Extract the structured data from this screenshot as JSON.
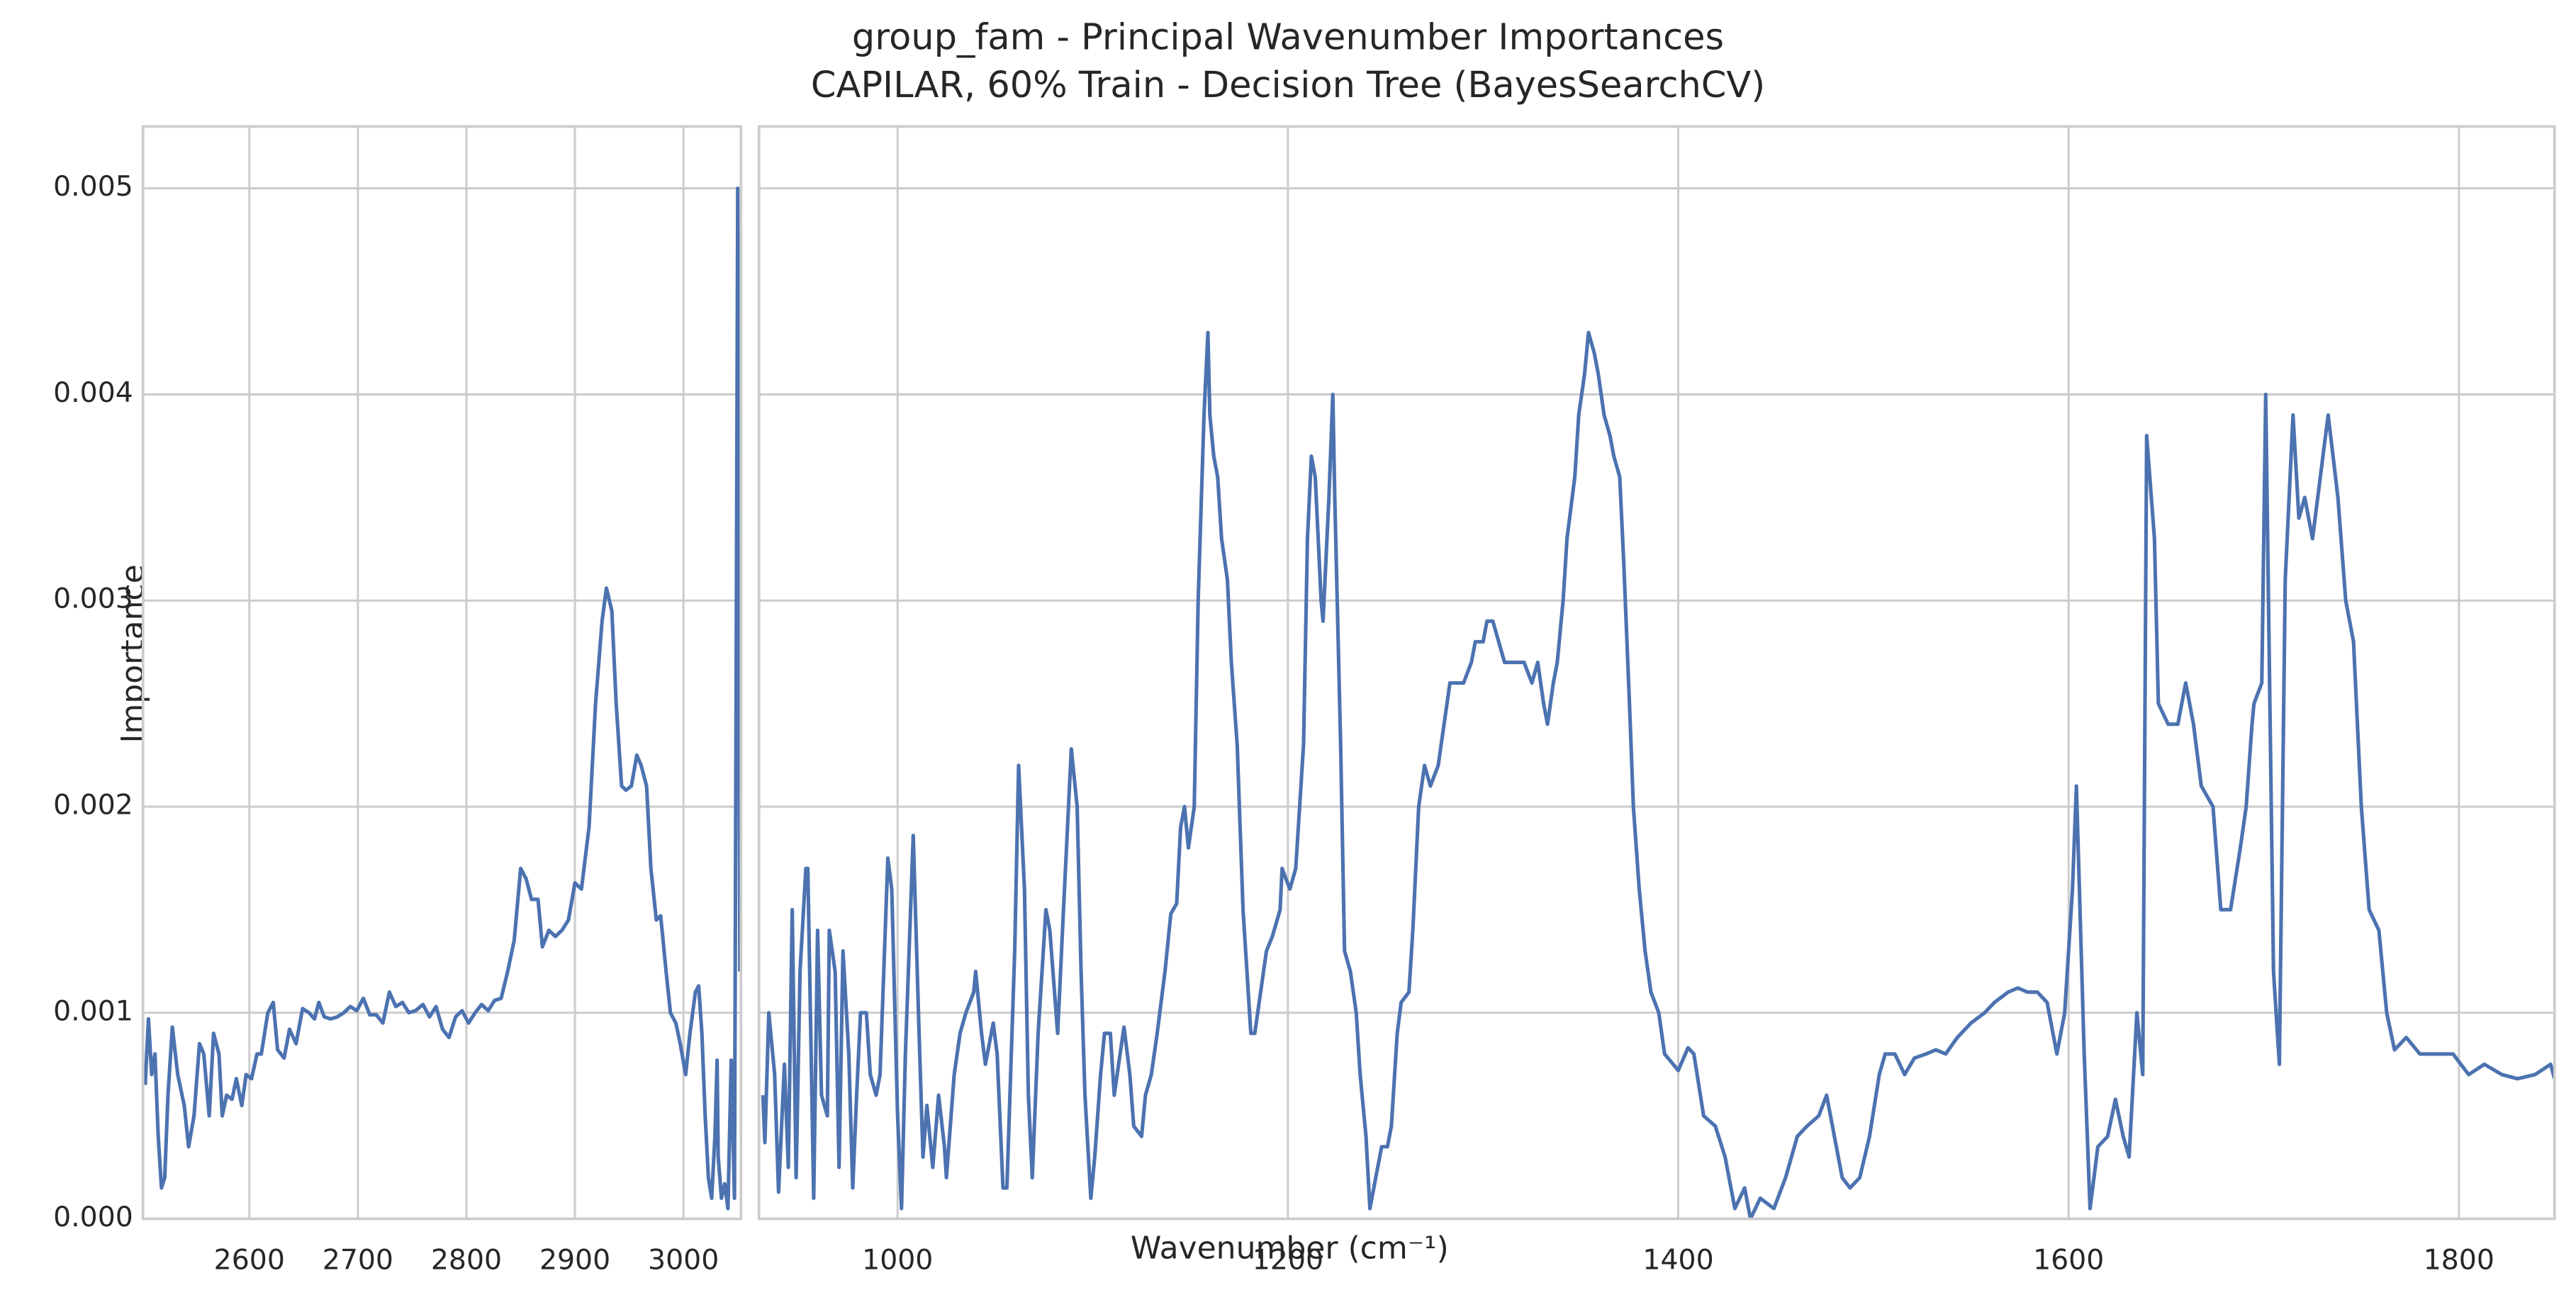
{
  "chart_data": [
    {
      "type": "line",
      "title": "group_fam - Principal Wavenumber Importances",
      "subtitle": "CAPILAR, 60% Train - Decision Tree (BayesSearchCV)",
      "ylabel": "Importance",
      "color": "#4c72b0",
      "grid": true,
      "xlim": [
        2502,
        3053
      ],
      "xticks": [
        2600,
        2700,
        2800,
        2900,
        3000
      ],
      "ylim": [
        0,
        0.0053
      ],
      "yticks": [
        {
          "value": 0,
          "label": "0.000"
        },
        0.001,
        0.002,
        0.003,
        0.004,
        0.005
      ],
      "x": [
        2504,
        2507,
        2510,
        2513,
        2516,
        2519,
        2522,
        2525,
        2529,
        2534,
        2540,
        2544,
        2549,
        2554,
        2558,
        2563,
        2567,
        2572,
        2575,
        2579,
        2584,
        2588,
        2593,
        2597,
        2602,
        2607,
        2611,
        2617,
        2622,
        2626,
        2632,
        2637,
        2643,
        2649,
        2655,
        2660,
        2664,
        2669,
        2675,
        2681,
        2687,
        2693,
        2699,
        2705,
        2711,
        2717,
        2723,
        2729,
        2735,
        2741,
        2747,
        2753,
        2760,
        2766,
        2772,
        2778,
        2784,
        2790,
        2796,
        2802,
        2808,
        2814,
        2820,
        2826,
        2832,
        2838,
        2844,
        2850,
        2855,
        2860,
        2866,
        2870,
        2876,
        2882,
        2888,
        2894,
        2900,
        2906,
        2913,
        2919,
        2925,
        2929,
        2934,
        2938,
        2943,
        2947,
        2952,
        2957,
        2961,
        2966,
        2970,
        2975,
        2979,
        2984,
        2988,
        2993,
        2997,
        3002,
        3006,
        3011,
        3014,
        3017,
        3020,
        3023,
        3026,
        3029,
        3031,
        3032,
        3035,
        3038,
        3041,
        3044,
        3047,
        3050,
        3052
      ],
      "values": [
        0.00065,
        0.00097,
        0.0007,
        0.0008,
        0.0004,
        0.00015,
        0.0002,
        0.0006,
        0.00093,
        0.0007,
        0.00055,
        0.00035,
        0.0005,
        0.00085,
        0.0008,
        0.0005,
        0.0009,
        0.0008,
        0.0005,
        0.0006,
        0.00058,
        0.00068,
        0.00055,
        0.0007,
        0.00068,
        0.0008,
        0.0008,
        0.001,
        0.00105,
        0.00082,
        0.00078,
        0.00092,
        0.00085,
        0.00102,
        0.001,
        0.00097,
        0.00105,
        0.00098,
        0.00097,
        0.00098,
        0.001,
        0.00103,
        0.00101,
        0.00107,
        0.00099,
        0.00099,
        0.00095,
        0.0011,
        0.00103,
        0.00105,
        0.001,
        0.00101,
        0.00104,
        0.00098,
        0.00103,
        0.00092,
        0.00088,
        0.00098,
        0.00101,
        0.00095,
        0.001,
        0.00104,
        0.00101,
        0.00106,
        0.00107,
        0.0012,
        0.00135,
        0.0017,
        0.00165,
        0.00155,
        0.00155,
        0.00132,
        0.0014,
        0.00137,
        0.0014,
        0.00145,
        0.00163,
        0.0016,
        0.0019,
        0.0025,
        0.0029,
        0.00306,
        0.00295,
        0.0025,
        0.0021,
        0.00208,
        0.0021,
        0.00225,
        0.0022,
        0.0021,
        0.0017,
        0.00145,
        0.00147,
        0.0012,
        0.001,
        0.00095,
        0.00085,
        0.0007,
        0.0009,
        0.0011,
        0.00113,
        0.0009,
        0.0005,
        0.0002,
        0.0001,
        0.0004,
        0.00077,
        0.0003,
        0.0001,
        0.00017,
        5e-05,
        0.00077,
        0.0001,
        0.005,
        0.0012
      ]
    },
    {
      "type": "line",
      "xlabel": "Wavenumber (cm⁻¹)",
      "color": "#4c72b0",
      "grid": true,
      "xlim": [
        929,
        1849
      ],
      "xticks": [
        1000,
        1200,
        1400,
        1600,
        1800
      ],
      "ylim": [
        0,
        0.0053
      ],
      "yticks": [
        0,
        0.001,
        0.002,
        0.003,
        0.004,
        0.005
      ],
      "x": [
        931,
        932,
        934,
        937,
        939,
        942,
        944,
        946,
        948,
        950,
        953,
        954,
        957,
        959,
        961,
        964,
        965,
        968,
        970,
        972,
        975,
        977,
        979,
        981,
        984,
        986,
        989,
        991,
        995,
        997,
        1000,
        1002,
        1004,
        1008,
        1011,
        1013,
        1015,
        1017,
        1018,
        1021,
        1024,
        1025,
        1029,
        1032,
        1035,
        1039,
        1040,
        1043,
        1045,
        1049,
        1051,
        1054,
        1056,
        1060,
        1062,
        1065,
        1067,
        1069,
        1072,
        1076,
        1078,
        1082,
        1085,
        1089,
        1092,
        1094,
        1096,
        1099,
        1101,
        1104,
        1106,
        1109,
        1111,
        1114,
        1116,
        1119,
        1121,
        1125,
        1127,
        1130,
        1133,
        1137,
        1140,
        1143,
        1145,
        1147,
        1149,
        1152,
        1154,
        1157,
        1159,
        1160,
        1162,
        1164,
        1166,
        1169,
        1171,
        1174,
        1177,
        1181,
        1183,
        1186,
        1189,
        1192,
        1196,
        1197,
        1201,
        1204,
        1208,
        1210,
        1212,
        1214,
        1217,
        1218,
        1221,
        1223,
        1224,
        1227,
        1229,
        1232,
        1235,
        1237,
        1240,
        1242,
        1245,
        1248,
        1251,
        1253,
        1256,
        1258,
        1262,
        1264,
        1267,
        1270,
        1273,
        1277,
        1280,
        1283,
        1287,
        1290,
        1294,
        1296,
        1300,
        1302,
        1305,
        1308,
        1311,
        1315,
        1318,
        1321,
        1325,
        1328,
        1331,
        1333,
        1336,
        1338,
        1341,
        1343,
        1347,
        1349,
        1352,
        1354,
        1357,
        1359,
        1362,
        1365,
        1367,
        1370,
        1372,
        1375,
        1377,
        1380,
        1383,
        1386,
        1390,
        1393,
        1400,
        1405,
        1408,
        1413,
        1419,
        1424,
        1429,
        1434,
        1437,
        1442,
        1449,
        1455,
        1461,
        1466,
        1472,
        1476,
        1480,
        1484,
        1488,
        1493,
        1498,
        1503,
        1506,
        1511,
        1516,
        1521,
        1527,
        1532,
        1537,
        1543,
        1550,
        1557,
        1562,
        1569,
        1574,
        1579,
        1584,
        1589,
        1594,
        1598,
        1602,
        1604,
        1608,
        1611,
        1615,
        1620,
        1624,
        1628,
        1631,
        1635,
        1638,
        1640,
        1644,
        1646,
        1651,
        1656,
        1660,
        1664,
        1668,
        1674,
        1678,
        1683,
        1688,
        1691,
        1694,
        1695,
        1699,
        1701,
        1705,
        1708,
        1711,
        1715,
        1718,
        1721,
        1725,
        1729,
        1733,
        1738,
        1742,
        1746,
        1750,
        1754,
        1759,
        1763,
        1767,
        1773,
        1780,
        1788,
        1797,
        1805,
        1813,
        1822,
        1830,
        1839,
        1847,
        1849
      ],
      "values": [
        0.0006,
        0.00037,
        0.001,
        0.0007,
        0.00013,
        0.00075,
        0.00025,
        0.0015,
        0.0002,
        0.0012,
        0.0017,
        0.0017,
        0.0001,
        0.0014,
        0.0006,
        0.0005,
        0.0014,
        0.0012,
        0.00025,
        0.0013,
        0.0008,
        0.00015,
        0.0006,
        0.001,
        0.001,
        0.0007,
        0.0006,
        0.0007,
        0.00175,
        0.0016,
        0.0005,
        5e-05,
        0.0008,
        0.00186,
        0.0009,
        0.0003,
        0.00055,
        0.00035,
        0.00025,
        0.0006,
        0.00035,
        0.0002,
        0.0007,
        0.0009,
        0.001,
        0.0011,
        0.0012,
        0.0009,
        0.00075,
        0.00095,
        0.0008,
        0.00015,
        0.00015,
        0.0013,
        0.0022,
        0.0016,
        0.0006,
        0.0002,
        0.0009,
        0.0015,
        0.0014,
        0.0009,
        0.0015,
        0.00228,
        0.002,
        0.0012,
        0.0006,
        0.0001,
        0.0003,
        0.0007,
        0.0009,
        0.0009,
        0.0006,
        0.0008,
        0.00093,
        0.0007,
        0.00045,
        0.0004,
        0.0006,
        0.0007,
        0.0009,
        0.0012,
        0.00148,
        0.00153,
        0.0019,
        0.002,
        0.0018,
        0.002,
        0.003,
        0.0039,
        0.0043,
        0.0039,
        0.0037,
        0.0036,
        0.0033,
        0.0031,
        0.0027,
        0.0023,
        0.0015,
        0.0009,
        0.0009,
        0.0011,
        0.0013,
        0.00137,
        0.0015,
        0.0017,
        0.0016,
        0.0017,
        0.0023,
        0.0033,
        0.0037,
        0.0036,
        0.003,
        0.0029,
        0.0035,
        0.004,
        0.0035,
        0.0023,
        0.0013,
        0.0012,
        0.001,
        0.0007,
        0.0004,
        5e-05,
        0.0002,
        0.00035,
        0.00035,
        0.00045,
        0.0009,
        0.00105,
        0.0011,
        0.0014,
        0.002,
        0.0022,
        0.0021,
        0.0022,
        0.0024,
        0.0026,
        0.0026,
        0.0026,
        0.0027,
        0.0028,
        0.0028,
        0.0029,
        0.0029,
        0.0028,
        0.0027,
        0.0027,
        0.0027,
        0.0027,
        0.0026,
        0.0027,
        0.0025,
        0.0024,
        0.0026,
        0.0027,
        0.003,
        0.0033,
        0.0036,
        0.0039,
        0.0041,
        0.0043,
        0.0042,
        0.0041,
        0.0039,
        0.0038,
        0.0037,
        0.0036,
        0.0032,
        0.0025,
        0.002,
        0.0016,
        0.0013,
        0.0011,
        0.001,
        0.0008,
        0.00072,
        0.00083,
        0.0008,
        0.0005,
        0.00045,
        0.0003,
        5e-05,
        0.00015,
        0,
        0.0001,
        5e-05,
        0.0002,
        0.0004,
        0.00045,
        0.0005,
        0.0006,
        0.0004,
        0.0002,
        0.00015,
        0.0002,
        0.0004,
        0.0007,
        0.0008,
        0.0008,
        0.0007,
        0.00078,
        0.0008,
        0.00082,
        0.0008,
        0.00088,
        0.00095,
        0.001,
        0.00105,
        0.0011,
        0.00112,
        0.0011,
        0.0011,
        0.00105,
        0.0008,
        0.001,
        0.0016,
        0.0021,
        0.0008,
        5e-05,
        0.00035,
        0.0004,
        0.00058,
        0.0004,
        0.0003,
        0.001,
        0.0007,
        0.0038,
        0.0033,
        0.0025,
        0.0024,
        0.0024,
        0.0026,
        0.0024,
        0.0021,
        0.002,
        0.0015,
        0.0015,
        0.0018,
        0.002,
        0.0024,
        0.0025,
        0.0026,
        0.004,
        0.0012,
        0.00075,
        0.0031,
        0.0039,
        0.0034,
        0.0035,
        0.0033,
        0.0036,
        0.0039,
        0.0035,
        0.003,
        0.0028,
        0.002,
        0.0015,
        0.0014,
        0.001,
        0.00082,
        0.00088,
        0.0008,
        0.0008,
        0.0008,
        0.0007,
        0.00075,
        0.0007,
        0.00068,
        0.0007,
        0.00075,
        0.00068
      ]
    }
  ]
}
